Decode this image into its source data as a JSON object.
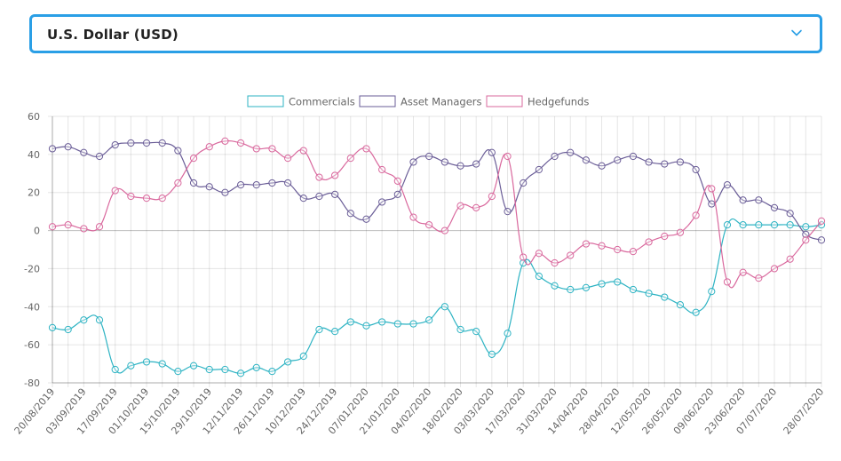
{
  "select": {
    "label": "U.S. Dollar (USD)"
  },
  "chart_data": {
    "type": "line",
    "legend_position": "top",
    "grid": true,
    "ylim": [
      -80,
      60
    ],
    "yticks": [
      60,
      40,
      20,
      0,
      -20,
      -40,
      -60,
      -80
    ],
    "xtick_labels": [
      "20/08/2019",
      "03/09/2019",
      "17/09/2019",
      "01/10/2019",
      "15/10/2019",
      "29/10/2019",
      "12/11/2019",
      "26/11/2019",
      "10/12/2019",
      "24/12/2019",
      "07/01/2020",
      "21/01/2020",
      "04/02/2020",
      "18/02/2020",
      "03/03/2020",
      "17/03/2020",
      "31/03/2020",
      "14/04/2020",
      "28/04/2020",
      "12/05/2020",
      "26/05/2020",
      "09/06/2020",
      "23/06/2020",
      "07/07/2020",
      "28/07/2020"
    ],
    "x": [
      "20/08/2019",
      "27/08/2019",
      "03/09/2019",
      "10/09/2019",
      "17/09/2019",
      "24/09/2019",
      "01/10/2019",
      "08/10/2019",
      "15/10/2019",
      "22/10/2019",
      "29/10/2019",
      "05/11/2019",
      "12/11/2019",
      "19/11/2019",
      "26/11/2019",
      "03/12/2019",
      "10/12/2019",
      "17/12/2019",
      "24/12/2019",
      "31/12/2019",
      "07/01/2020",
      "14/01/2020",
      "21/01/2020",
      "28/01/2020",
      "04/02/2020",
      "11/02/2020",
      "18/02/2020",
      "25/02/2020",
      "03/03/2020",
      "10/03/2020",
      "17/03/2020",
      "24/03/2020",
      "31/03/2020",
      "07/04/2020",
      "14/04/2020",
      "21/04/2020",
      "28/04/2020",
      "05/05/2020",
      "12/05/2020",
      "19/05/2020",
      "26/05/2020",
      "02/06/2020",
      "09/06/2020",
      "16/06/2020",
      "23/06/2020",
      "30/06/2020",
      "07/07/2020",
      "14/07/2020",
      "21/07/2020",
      "28/07/2020"
    ],
    "series": [
      {
        "name": "Commercials",
        "color": "#2db3c3",
        "values": [
          -51,
          -52,
          -47,
          -47,
          -73,
          -71,
          -69,
          -70,
          -74,
          -71,
          -73,
          -73,
          -75,
          -72,
          -74,
          -69,
          -66,
          -52,
          -53,
          -48,
          -50,
          -48,
          -49,
          -49,
          -47,
          -40,
          -52,
          -53,
          -65,
          -54,
          -17,
          -24,
          -29,
          -31,
          -30,
          -28,
          -27,
          -31,
          -33,
          -35,
          -39,
          -43,
          -32,
          3,
          3,
          3,
          3,
          3,
          2,
          3
        ]
      },
      {
        "name": "Asset Managers",
        "color": "#6a5d97",
        "values": [
          43,
          44,
          41,
          39,
          45,
          46,
          46,
          46,
          42,
          25,
          23,
          20,
          24,
          24,
          25,
          25,
          17,
          18,
          19,
          9,
          6,
          15,
          19,
          36,
          39,
          36,
          34,
          35,
          41,
          10,
          25,
          32,
          39,
          41,
          37,
          34,
          37,
          39,
          36,
          35,
          36,
          32,
          14,
          24,
          16,
          16,
          12,
          9,
          -2,
          -5
        ]
      },
      {
        "name": "Hedgefunds",
        "color": "#d9689d",
        "values": [
          2,
          3,
          1,
          2,
          21,
          18,
          17,
          17,
          25,
          38,
          44,
          47,
          46,
          43,
          43,
          38,
          42,
          28,
          29,
          38,
          43,
          32,
          26,
          7,
          3,
          0,
          13,
          12,
          18,
          39,
          -14,
          -12,
          -17,
          -13,
          -7,
          -8,
          -10,
          -11,
          -6,
          -3,
          -1,
          8,
          22,
          -27,
          -22,
          -25,
          -20,
          -15,
          -5,
          5
        ]
      }
    ]
  }
}
